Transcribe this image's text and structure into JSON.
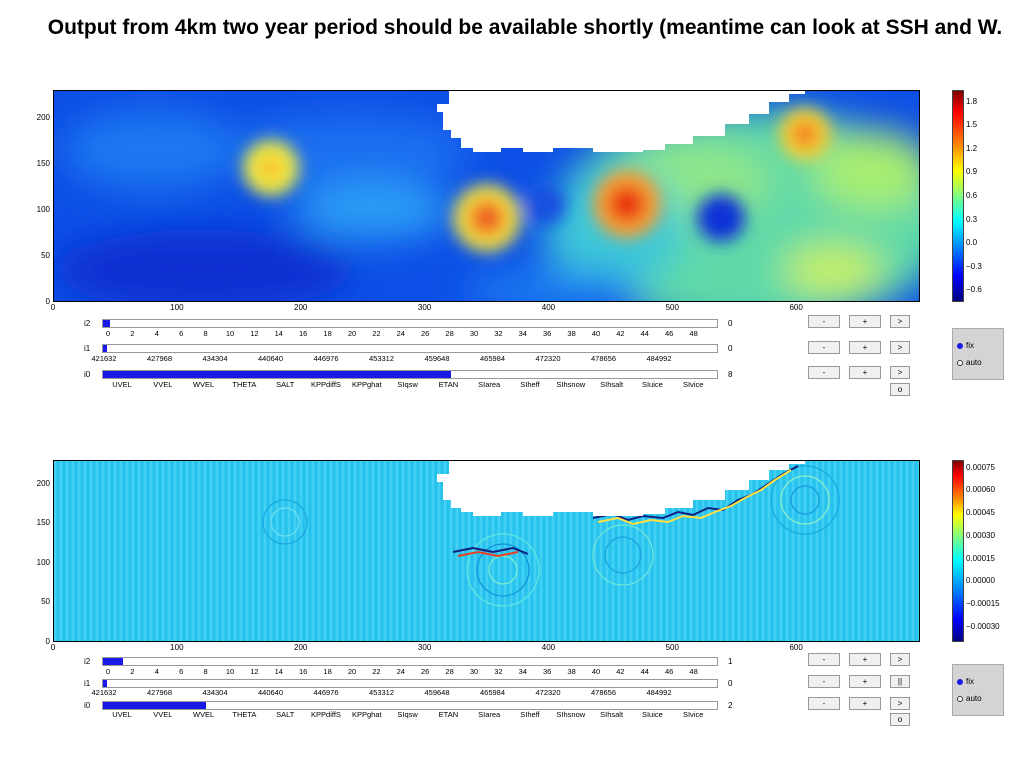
{
  "slide": {
    "title": "Output from 4km two year period should be available shortly (meantime can look at SSH and W."
  },
  "panels": [
    {
      "chart_data": {
        "type": "heatmap",
        "xlim": [
          0,
          700
        ],
        "ylim": [
          0,
          230
        ],
        "x_ticks": [
          "0",
          "100",
          "200",
          "300",
          "400",
          "500",
          "600"
        ],
        "y_ticks": [
          "0",
          "50",
          "100",
          "150",
          "200"
        ],
        "colorbar_ticks": [
          "1.8",
          "1.5",
          "1.2",
          "0.9",
          "0.6",
          "0.3",
          "0.0",
          "−0.3",
          "−0.6"
        ],
        "colorbar_range": [
          -0.75,
          1.95
        ]
      },
      "controls": {
        "i2": {
          "label": "i2",
          "ticks": [
            "0",
            "2",
            "4",
            "6",
            "8",
            "10",
            "12",
            "14",
            "16",
            "18",
            "20",
            "22",
            "24",
            "26",
            "28",
            "30",
            "32",
            "34",
            "36",
            "38",
            "40",
            "42",
            "44",
            "46",
            "48"
          ],
          "value": "0",
          "fill": 0.011
        },
        "i1": {
          "label": "i1",
          "ticks": [
            "421632",
            "427968",
            "434304",
            "440640",
            "446976",
            "453312",
            "459648",
            "465984",
            "472320",
            "478656",
            "484992"
          ],
          "value": "0",
          "fill": 0.003
        },
        "i0": {
          "label": "i0",
          "ticks": [
            "UVEL",
            "VVEL",
            "WVEL",
            "THETA",
            "SALT",
            "KPPdiffS",
            "KPPghat",
            "SIqsw",
            "ETAN",
            "SIarea",
            "SIheff",
            "SIhsnow",
            "SIhsalt",
            "SIuice",
            "SIvice"
          ],
          "value": "8",
          "fill": 0.565
        },
        "buttons": [
          [
            "-",
            "+",
            ">"
          ],
          [
            "-",
            "+",
            ">"
          ],
          [
            "-",
            "+",
            ">"
          ]
        ],
        "extra_button": "o",
        "radio": {
          "fix": "fix",
          "auto": "auto",
          "selected": "fix"
        }
      }
    },
    {
      "chart_data": {
        "type": "heatmap",
        "xlim": [
          0,
          700
        ],
        "ylim": [
          0,
          230
        ],
        "x_ticks": [
          "0",
          "100",
          "200",
          "300",
          "400",
          "500",
          "600"
        ],
        "y_ticks": [
          "0",
          "50",
          "100",
          "150",
          "200"
        ],
        "colorbar_ticks": [
          "0.00075",
          "0.00060",
          "0.00045",
          "0.00030",
          "0.00015",
          "0.00000",
          "−0.00015",
          "−0.00030"
        ],
        "colorbar_range": [
          -0.0004,
          0.0008
        ]
      },
      "controls": {
        "i2": {
          "label": "i2",
          "ticks": [
            "0",
            "2",
            "4",
            "6",
            "8",
            "10",
            "12",
            "14",
            "16",
            "18",
            "20",
            "22",
            "24",
            "26",
            "28",
            "30",
            "32",
            "34",
            "36",
            "38",
            "40",
            "42",
            "44",
            "46",
            "48"
          ],
          "value": "1",
          "fill": 0.032
        },
        "i1": {
          "label": "i1",
          "ticks": [
            "421632",
            "427968",
            "434304",
            "440640",
            "446976",
            "453312",
            "459648",
            "465984",
            "472320",
            "478656",
            "484992"
          ],
          "value": "0",
          "fill": 0.006
        },
        "i0": {
          "label": "i0",
          "ticks": [
            "UVEL",
            "VVEL",
            "WVEL",
            "THETA",
            "SALT",
            "KPPdiffS",
            "KPPghat",
            "SIqsw",
            "ETAN",
            "SIarea",
            "SIheff",
            "SIhsnow",
            "SIhsalt",
            "SIuice",
            "SIvice"
          ],
          "value": "2",
          "fill": 0.168
        },
        "buttons": [
          [
            "-",
            "+",
            ">"
          ],
          [
            "-",
            "+",
            "||"
          ],
          [
            "-",
            "+",
            ">"
          ]
        ],
        "extra_button": "o",
        "radio": {
          "fix": "fix",
          "auto": "auto",
          "selected": "fix"
        }
      }
    }
  ]
}
